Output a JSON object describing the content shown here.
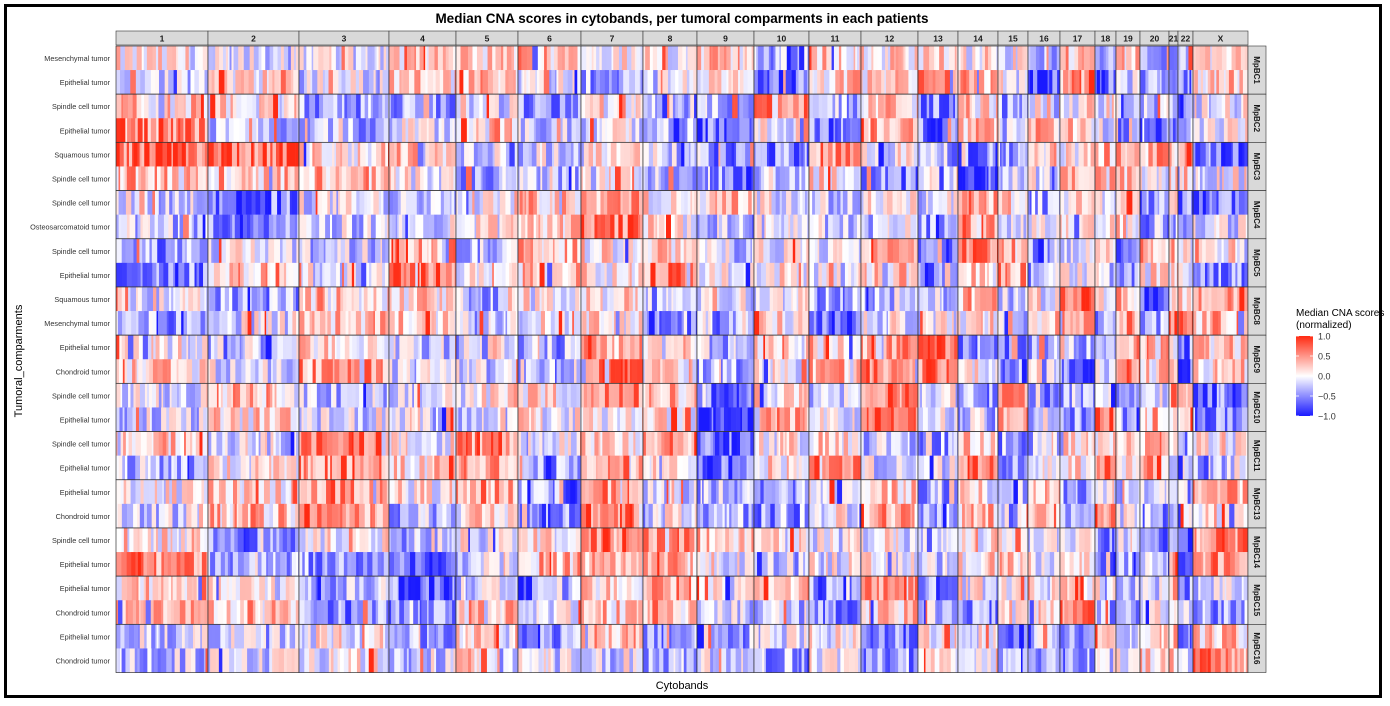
{
  "chart_data": {
    "type": "heatmap",
    "title": "Median CNA scores in cytobands, per tumoral comparments in each patients",
    "xlabel": "Cytobands",
    "ylabel": "Tumoral_comparments",
    "chromosomes": [
      "1",
      "2",
      "3",
      "4",
      "5",
      "6",
      "7",
      "8",
      "9",
      "10",
      "11",
      "12",
      "13",
      "14",
      "15",
      "16",
      "17",
      "18",
      "19",
      "20",
      "21",
      "22",
      "X"
    ],
    "patients": [
      {
        "name": "MpBC1",
        "compartments": [
          "Mesenchymal tumor",
          "Epithelial tumor"
        ]
      },
      {
        "name": "MpBC2",
        "compartments": [
          "Spindle cell tumor",
          "Epithelial tumor"
        ]
      },
      {
        "name": "MpBC3",
        "compartments": [
          "Squamous tumor",
          "Spindle cell tumor"
        ]
      },
      {
        "name": "MpBC4",
        "compartments": [
          "Spindle cell tumor",
          "Osteosarcomatoid tumor"
        ]
      },
      {
        "name": "MpBC5",
        "compartments": [
          "Spindle cell tumor",
          "Epithelial tumor"
        ]
      },
      {
        "name": "MpBC8",
        "compartments": [
          "Squamous tumor",
          "Mesenchymal tumor"
        ]
      },
      {
        "name": "MpBC9",
        "compartments": [
          "Epithelial tumor",
          "Chondroid tumor"
        ]
      },
      {
        "name": "MpBC10",
        "compartments": [
          "Spindle cell tumor",
          "Epithelial tumor"
        ]
      },
      {
        "name": "MpBC11",
        "compartments": [
          "Spindle cell tumor",
          "Epithelial tumor"
        ]
      },
      {
        "name": "MpBC13",
        "compartments": [
          "Epithelial tumor",
          "Chondroid tumor"
        ]
      },
      {
        "name": "MpBC14",
        "compartments": [
          "Spindle cell tumor",
          "Epithelial tumor"
        ]
      },
      {
        "name": "MpBC15",
        "compartments": [
          "Epithelial tumor",
          "Chondroid tumor"
        ]
      },
      {
        "name": "MpBC16",
        "compartments": [
          "Epithelial tumor",
          "Chondroid tumor"
        ]
      }
    ],
    "legend": {
      "title_lines": [
        "Median CNA scores",
        "(normalized)"
      ],
      "ticks": [
        1.0,
        0.5,
        0.0,
        -0.5,
        -1.0
      ],
      "tick_labels": [
        "1.0",
        "0.5",
        "0.0",
        "−0.5",
        "−1.0"
      ],
      "range": [
        -1.0,
        1.0
      ],
      "colors": {
        "low": "#1a1aff",
        "mid": "#ffffff",
        "high": "#ff2a12"
      },
      "placement": "right"
    },
    "facet_strip_fill": "#d9d9d9",
    "grid": false
  }
}
